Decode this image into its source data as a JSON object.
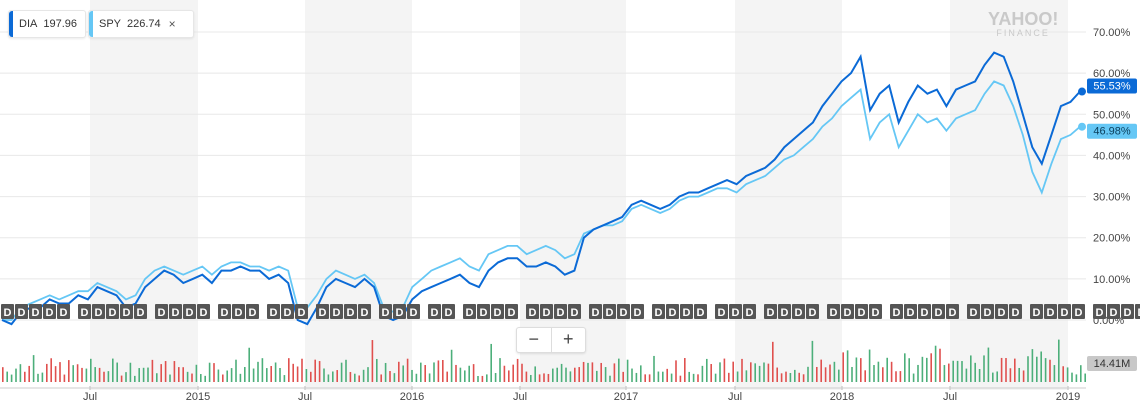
{
  "legend": [
    {
      "symbol": "DIA",
      "value": "197.96",
      "color": "#0b6ad6"
    },
    {
      "symbol": "SPY",
      "value": "226.74",
      "color": "#65c7f5",
      "close": "×"
    }
  ],
  "watermark": {
    "line1": "YAHOO!",
    "line2": "FINANCE"
  },
  "zoom": {
    "minus": "−",
    "plus": "+"
  },
  "volume_label": "14.41M",
  "chart_data": {
    "type": "line",
    "x_axis_labels": [
      "Jul",
      "2015",
      "Jul",
      "2016",
      "Jul",
      "2017",
      "Jul",
      "2018",
      "Jul",
      "2019"
    ],
    "y_tick_labels": [
      "70.00%",
      "60.00%",
      "50.00%",
      "40.00%",
      "30.00%",
      "20.00%",
      "10.00%",
      "0.00%"
    ],
    "ylim": [
      -10,
      75
    ],
    "grid": true,
    "event_marker_label": "D",
    "dividend_markers": [
      5,
      5,
      4,
      3,
      3,
      4,
      3,
      2,
      4,
      4,
      4,
      4,
      3,
      4,
      4,
      5,
      4,
      4,
      4,
      4,
      2
    ],
    "series": [
      {
        "name": "DIA",
        "color": "#0b6ad6",
        "last_label": "55.53%",
        "values": [
          0,
          -1,
          2,
          3,
          3,
          5,
          4,
          4,
          6,
          5,
          8,
          7,
          6,
          3,
          4,
          8,
          10,
          12,
          11,
          9,
          10,
          11,
          9,
          12,
          12,
          13,
          12,
          12,
          10,
          11,
          9,
          0,
          -1,
          3,
          8,
          10,
          9,
          8,
          10,
          8,
          1,
          0,
          1,
          5,
          7,
          8,
          9,
          10,
          11,
          9,
          8,
          12,
          14,
          15,
          15,
          13,
          13,
          14,
          13,
          11,
          12,
          20,
          22,
          23,
          24,
          25,
          28,
          29,
          28,
          27,
          28,
          30,
          31,
          31,
          32,
          33,
          34,
          33,
          35,
          36,
          37,
          39,
          42,
          44,
          46,
          48,
          52,
          55,
          58,
          60,
          64,
          51,
          55,
          57,
          48,
          53,
          57,
          55,
          56,
          52,
          56,
          57,
          58,
          62,
          65,
          64,
          58,
          50,
          42,
          38,
          45,
          52,
          53,
          55.53
        ]
      },
      {
        "name": "SPY",
        "color": "#65c7f5",
        "last_label": "46.98%",
        "values": [
          0,
          0,
          3,
          4,
          5,
          6,
          5,
          6,
          7,
          7,
          9,
          8,
          7,
          5,
          6,
          10,
          12,
          13,
          12,
          11,
          12,
          13,
          11,
          13,
          14,
          14,
          13,
          13,
          12,
          13,
          12,
          3,
          3,
          6,
          10,
          12,
          11,
          10,
          11,
          9,
          3,
          2,
          3,
          8,
          10,
          12,
          13,
          14,
          15,
          13,
          12,
          16,
          17,
          18,
          18,
          16,
          17,
          18,
          17,
          15,
          16,
          21,
          22,
          23,
          23,
          24,
          27,
          28,
          27,
          26,
          27,
          29,
          30,
          30,
          31,
          32,
          32,
          31,
          33,
          34,
          35,
          37,
          39,
          40,
          42,
          44,
          47,
          49,
          52,
          54,
          56,
          44,
          48,
          50,
          42,
          46,
          50,
          48,
          49,
          46,
          49,
          50,
          51,
          55,
          58,
          57,
          52,
          45,
          36,
          31,
          38,
          44,
          45,
          46.98
        ]
      }
    ]
  }
}
